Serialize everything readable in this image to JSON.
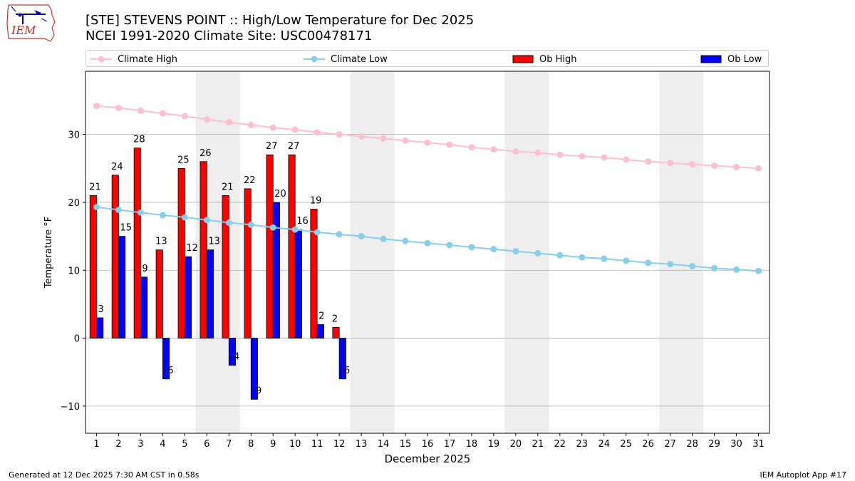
{
  "header": {
    "title_line1": "[STE] STEVENS POINT :: High/Low Temperature for Dec 2025",
    "title_line2": "NCEI 1991-2020 Climate Site: USC00478171",
    "logo_text": "IEM"
  },
  "legend": {
    "items": [
      "Climate High",
      "Climate Low",
      "Ob High",
      "Ob Low"
    ]
  },
  "footer": {
    "generated": "Generated at 12 Dec 2025 7:30 AM CST in 0.58s",
    "app": "IEM Autoplot App #17"
  },
  "colors": {
    "climate_high": "#ffc0cb",
    "climate_low": "#87ceeb",
    "ob_high": "#ff0000",
    "ob_low": "#0000ff",
    "weekend_band": "#eeeeee",
    "grid": "#b0b0b0"
  },
  "chart_data": {
    "type": "bar",
    "xlabel": "December 2025",
    "ylabel": "Temperature °F",
    "xlim": [
      0.5,
      31.5
    ],
    "ylim": [
      -14,
      39.3
    ],
    "y_ticks": [
      -10,
      0,
      10,
      20,
      30
    ],
    "x_ticks": [
      1,
      2,
      3,
      4,
      5,
      6,
      7,
      8,
      9,
      10,
      11,
      12,
      13,
      14,
      15,
      16,
      17,
      18,
      19,
      20,
      21,
      22,
      23,
      24,
      25,
      26,
      27,
      28,
      29,
      30,
      31
    ],
    "grid": "horizontal",
    "legend_placement": "top",
    "weekend_shading": [
      [
        5.5,
        7.5
      ],
      [
        12.5,
        14.5
      ],
      [
        19.5,
        21.5
      ],
      [
        26.5,
        28.5
      ]
    ],
    "days": [
      1,
      2,
      3,
      4,
      5,
      6,
      7,
      8,
      9,
      10,
      11,
      12
    ],
    "series": [
      {
        "name": "Ob High",
        "values": [
          21,
          24,
          28,
          13,
          25,
          26,
          21,
          22,
          27,
          27,
          19,
          1.6
        ]
      },
      {
        "name": "Ob Low",
        "values": [
          3,
          15,
          9,
          -6,
          12,
          13,
          -4,
          -9,
          20,
          16,
          2,
          -6
        ]
      },
      {
        "name": "Climate High",
        "x": [
          1,
          2,
          3,
          4,
          5,
          6,
          7,
          8,
          9,
          10,
          11,
          12,
          13,
          14,
          15,
          16,
          17,
          18,
          19,
          20,
          21,
          22,
          23,
          24,
          25,
          26,
          27,
          28,
          29,
          30,
          31
        ],
        "values": [
          34.2,
          33.9,
          33.5,
          33.1,
          32.7,
          32.2,
          31.8,
          31.4,
          31.0,
          30.7,
          30.3,
          30.0,
          29.7,
          29.4,
          29.1,
          28.8,
          28.5,
          28.1,
          27.8,
          27.5,
          27.3,
          27.0,
          26.8,
          26.6,
          26.3,
          26.0,
          25.8,
          25.6,
          25.4,
          25.2,
          25.0
        ]
      },
      {
        "name": "Climate Low",
        "x": [
          1,
          2,
          3,
          4,
          5,
          6,
          7,
          8,
          9,
          10,
          11,
          12,
          13,
          14,
          15,
          16,
          17,
          18,
          19,
          20,
          21,
          22,
          23,
          24,
          25,
          26,
          27,
          28,
          29,
          30,
          31
        ],
        "values": [
          19.3,
          18.9,
          18.5,
          18.1,
          17.8,
          17.4,
          17.0,
          16.7,
          16.3,
          16.0,
          15.6,
          15.3,
          15.0,
          14.6,
          14.3,
          14.0,
          13.7,
          13.4,
          13.1,
          12.8,
          12.5,
          12.2,
          11.9,
          11.7,
          11.4,
          11.1,
          10.9,
          10.6,
          10.3,
          10.1,
          9.9
        ]
      }
    ],
    "high_labels": [
      "21",
      "24",
      "28",
      "13",
      "25",
      "26",
      "21",
      "22",
      "27",
      "27",
      "19",
      "2"
    ],
    "low_labels": [
      "3",
      "15",
      "9",
      "-6",
      "12",
      "13",
      "-4",
      "-9",
      "20",
      "16",
      "2",
      "-6"
    ]
  }
}
